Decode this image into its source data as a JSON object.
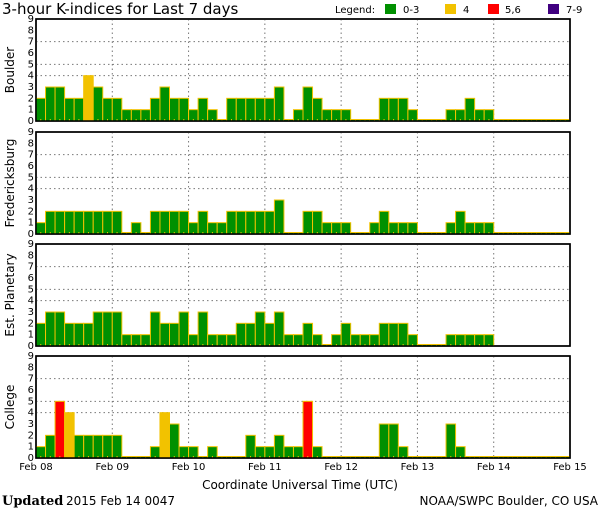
{
  "title": "3-hour K-indices for Last 7 days",
  "legend": {
    "label": "Legend:",
    "items": [
      {
        "label": "0-3",
        "color": "#009000"
      },
      {
        "label": "4",
        "color": "#f2c200"
      },
      {
        "label": "5,6",
        "color": "#ff0000"
      },
      {
        "label": "7-9",
        "color": "#400080"
      }
    ]
  },
  "bar_outline_color": "#f2c200",
  "footer": {
    "updated_label": "Updated",
    "updated_value": "2015 Feb 14 0047",
    "source": "NOAA/SWPC Boulder, CO USA"
  },
  "chart_data": {
    "type": "bar",
    "xlabel": "Coordinate Universal Time (UTC)",
    "x_tick_labels": [
      "Feb 08",
      "Feb 09",
      "Feb 10",
      "Feb 11",
      "Feb 12",
      "Feb 13",
      "Feb 14",
      "Feb 15"
    ],
    "interval_hours": 3,
    "ylim": [
      0,
      9
    ],
    "y_tick_labels": [
      "0",
      "1",
      "2",
      "3",
      "4",
      "5",
      "6",
      "7",
      "8",
      "9"
    ],
    "gridlines_y": [
      4,
      5,
      7
    ],
    "grid": true,
    "panels": [
      {
        "name": "Boulder",
        "values": [
          2,
          3,
          3,
          2,
          2,
          4,
          3,
          2,
          2,
          1,
          1,
          1,
          2,
          3,
          2,
          2,
          1,
          2,
          1,
          0,
          2,
          2,
          2,
          2,
          2,
          3,
          0,
          1,
          3,
          2,
          1,
          1,
          1,
          0,
          0,
          0,
          2,
          2,
          2,
          1,
          0,
          0,
          0,
          1,
          1,
          2,
          1,
          1,
          0,
          0,
          0,
          0,
          0,
          0,
          0,
          0
        ]
      },
      {
        "name": "Fredericksburg",
        "values": [
          1,
          2,
          2,
          2,
          2,
          2,
          2,
          2,
          2,
          0,
          1,
          0,
          2,
          2,
          2,
          2,
          1,
          2,
          1,
          1,
          2,
          2,
          2,
          2,
          2,
          3,
          0,
          0,
          2,
          2,
          1,
          1,
          1,
          0,
          0,
          1,
          2,
          1,
          1,
          1,
          0,
          0,
          0,
          1,
          2,
          1,
          1,
          1,
          0,
          0,
          0,
          0,
          0,
          0,
          0,
          0
        ]
      },
      {
        "name": "Est. Planetary",
        "values": [
          2,
          3,
          3,
          2,
          2,
          2,
          3,
          3,
          3,
          1,
          1,
          1,
          3,
          2,
          2,
          3,
          1,
          3,
          1,
          1,
          1,
          2,
          2,
          3,
          2,
          3,
          1,
          1,
          2,
          1,
          0,
          1,
          2,
          1,
          1,
          1,
          2,
          2,
          2,
          1,
          0,
          0,
          0,
          1,
          1,
          1,
          1,
          1,
          null,
          null,
          null,
          null,
          null,
          null,
          null,
          null
        ]
      },
      {
        "name": "College",
        "values": [
          1,
          2,
          5,
          4,
          2,
          2,
          2,
          2,
          2,
          0,
          0,
          0,
          1,
          4,
          3,
          1,
          1,
          0,
          1,
          0,
          0,
          0,
          2,
          1,
          1,
          2,
          1,
          1,
          5,
          1,
          0,
          0,
          0,
          0,
          0,
          0,
          3,
          3,
          1,
          0,
          0,
          0,
          0,
          3,
          1,
          0,
          0,
          0,
          0,
          0,
          0,
          0,
          0,
          0,
          0,
          0
        ]
      }
    ]
  }
}
